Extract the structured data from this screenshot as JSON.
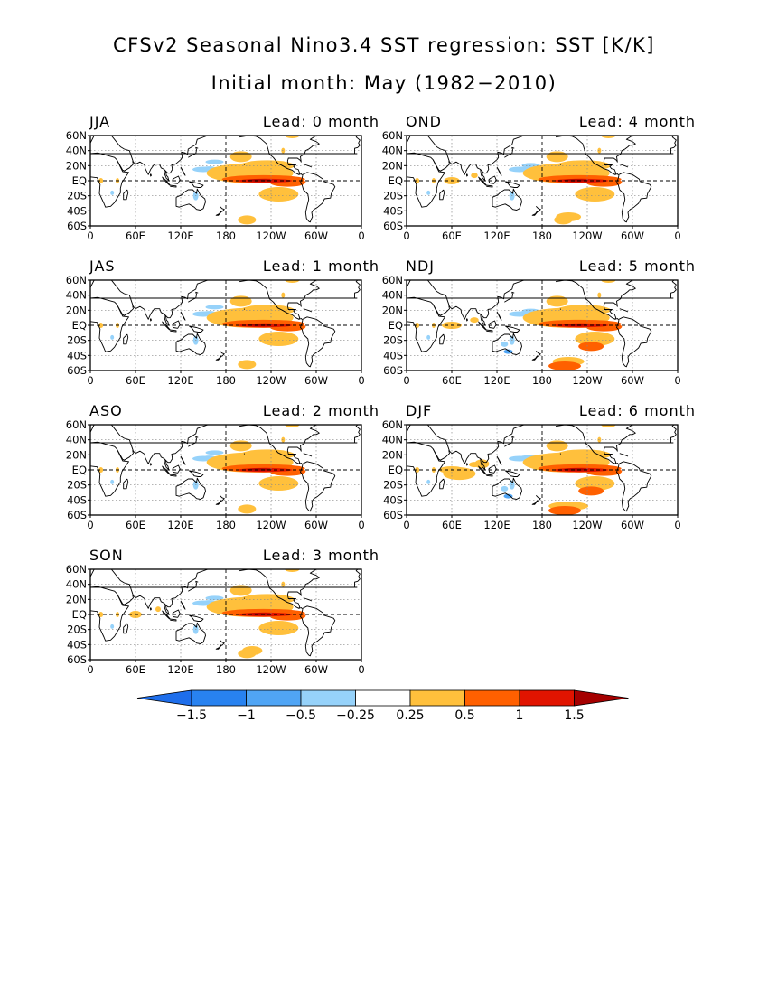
{
  "title": "CFSv2 Seasonal Nino3.4 SST regression: SST [K/K]",
  "subtitle": "Initial month: May (1982−2010)",
  "panels": [
    {
      "season": "JJA",
      "lead": "Lead: 0 month",
      "strength": 0.0
    },
    {
      "season": "OND",
      "lead": "Lead: 4 month",
      "strength": 0.55
    },
    {
      "season": "JAS",
      "lead": "Lead: 1 month",
      "strength": 0.1
    },
    {
      "season": "NDJ",
      "lead": "Lead: 5 month",
      "strength": 0.75
    },
    {
      "season": "ASO",
      "lead": "Lead: 2 month",
      "strength": 0.25
    },
    {
      "season": "DJF",
      "lead": "Lead: 6 month",
      "strength": 1.0
    },
    {
      "season": "SON",
      "lead": "Lead: 3 month",
      "strength": 0.4
    }
  ],
  "map": {
    "lat_labels": [
      "60N",
      "40N",
      "20N",
      "EQ",
      "20S",
      "40S",
      "60S"
    ],
    "lon_labels": [
      "0",
      "60E",
      "120E",
      "180",
      "120W",
      "60W",
      "0"
    ]
  },
  "colorbar": {
    "labels": [
      "−1.5",
      "−1",
      "−0.5",
      "−0.25",
      "0.25",
      "0.5",
      "1",
      "1.5"
    ],
    "colors": [
      "#1e6eeb",
      "#2882f0",
      "#50a5f5",
      "#96d2fa",
      "#ffffff",
      "#ffc03c",
      "#ff6000",
      "#e11400",
      "#a50000"
    ]
  },
  "colors": {
    "neg_weak": "#96d2fa",
    "neg_mid": "#50a5f5",
    "pos_weak": "#ffc03c",
    "pos_mid": "#ff6000",
    "pos_strong": "#e11400",
    "pos_max": "#a50000"
  }
}
